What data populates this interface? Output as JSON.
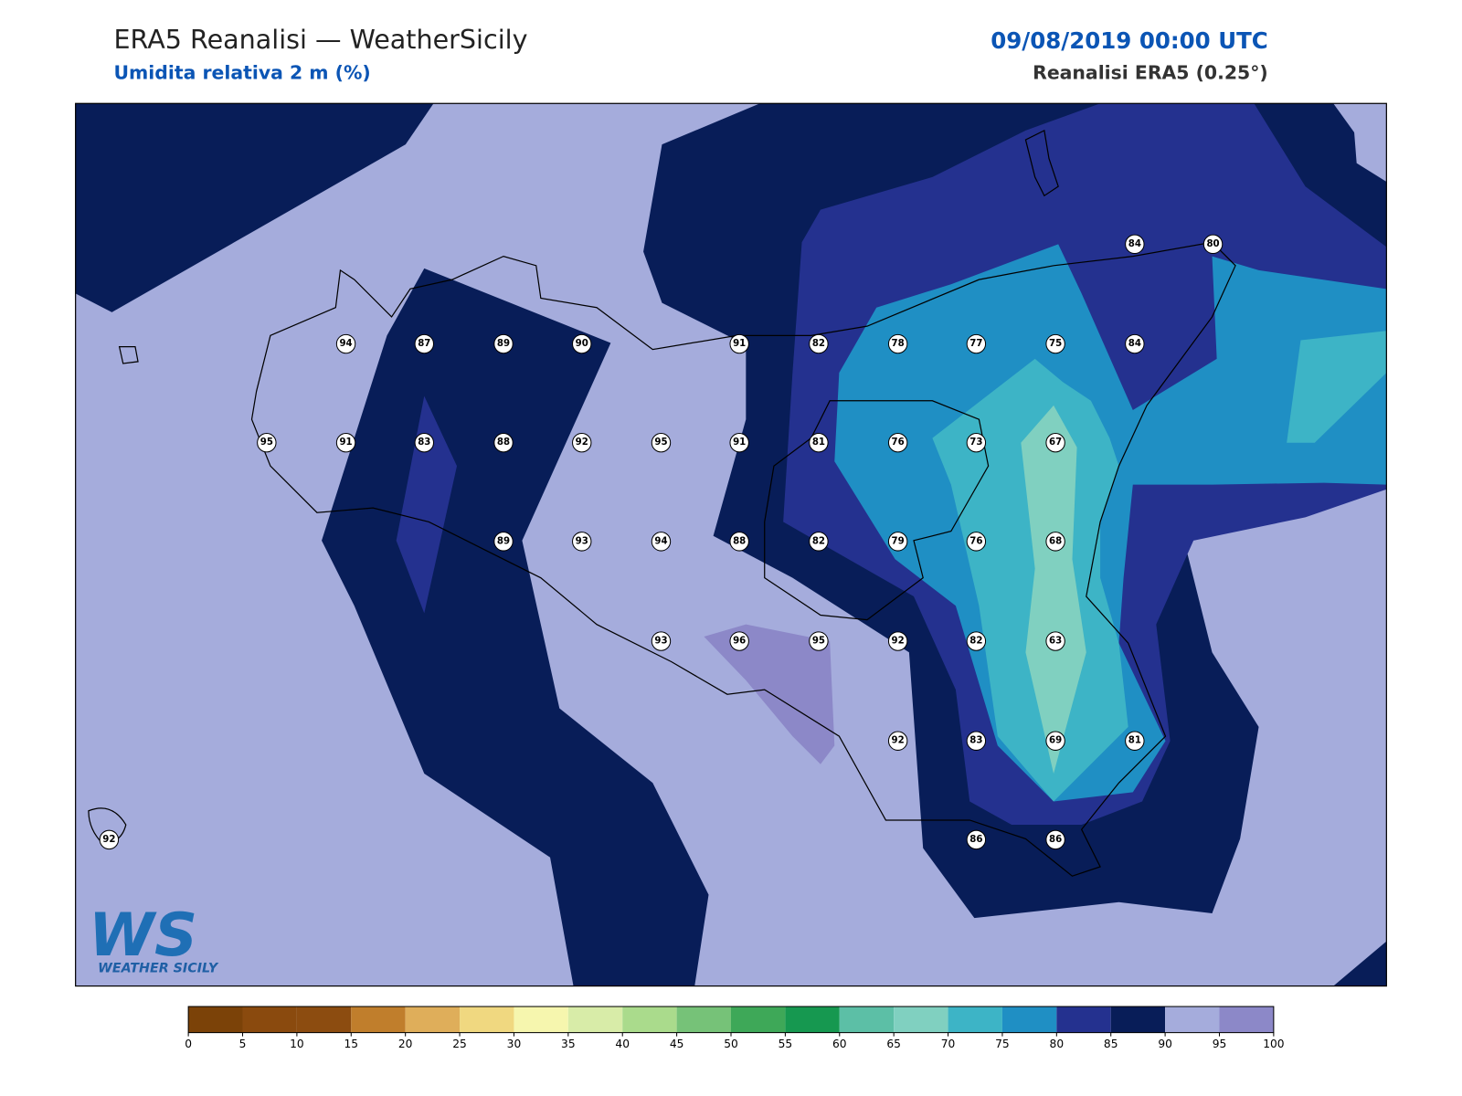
{
  "header": {
    "title": "ERA5 Reanalisi — WeatherSicily",
    "subtitle": "Umidita relativa 2 m (%)",
    "date": "09/08/2019 00:00 UTC",
    "source": "Reanalisi ERA5 (0.25°)"
  },
  "logo": {
    "mark": "WS",
    "name": "WEATHER SICILY"
  },
  "stations": [
    84,
    80,
    94,
    87,
    89,
    90,
    91,
    82,
    78,
    77,
    75,
    84,
    95,
    91,
    83,
    88,
    92,
    95,
    91,
    81,
    76,
    73,
    67,
    89,
    93,
    94,
    88,
    82,
    79,
    76,
    68,
    93,
    96,
    95,
    92,
    82,
    63,
    92,
    83,
    69,
    81,
    92,
    86,
    86
  ],
  "colorbar": {
    "ticks": [
      0,
      5,
      10,
      15,
      20,
      25,
      30,
      35,
      40,
      45,
      50,
      55,
      60,
      65,
      70,
      75,
      80,
      85,
      90,
      95,
      100
    ],
    "colors": [
      "#7b4208",
      "#8a4a0e",
      "#8c4c10",
      "#c07e2c",
      "#dfae5a",
      "#f0d880",
      "#f6f6ae",
      "#d8eca8",
      "#aadb8c",
      "#76c278",
      "#3ea858",
      "#169850",
      "#5cbfa6",
      "#80d0c0",
      "#3db4c6",
      "#1f8fc4",
      "#24318f",
      "#081d58",
      "#a5acdc",
      "#8c88c8"
    ]
  }
}
